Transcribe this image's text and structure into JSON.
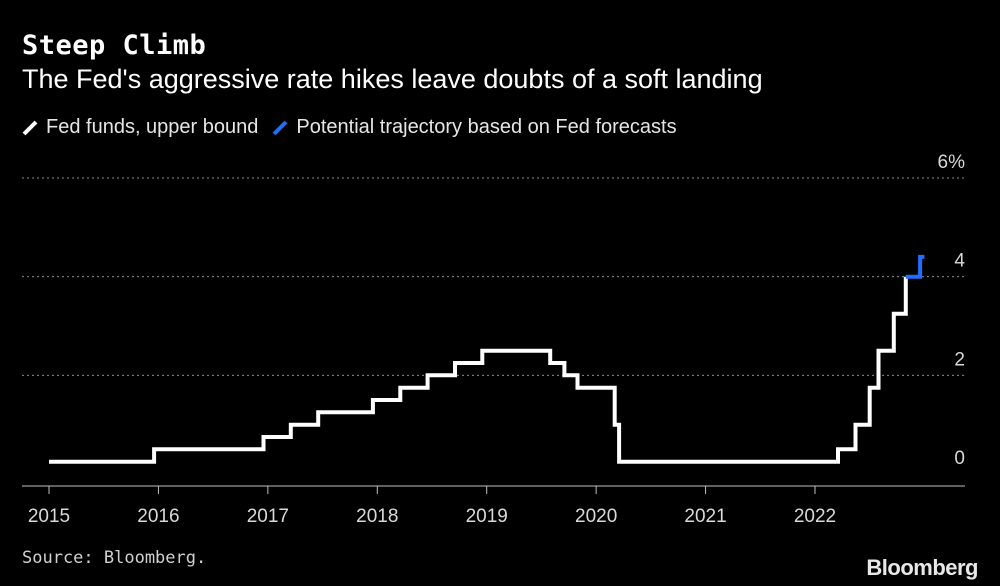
{
  "header": {
    "title": "Steep Climb",
    "subtitle": "The Fed's aggressive rate hikes leave doubts of a soft landing"
  },
  "footer": {
    "source": "Source: Bloomberg.",
    "brand": "Bloomberg"
  },
  "colors": {
    "series_main": "#ffffff",
    "series_forecast": "#1f6fff",
    "gridline": "#8a8a8a",
    "background": "#000000"
  },
  "chart_data": {
    "type": "line",
    "step": true,
    "title": "Steep Climb",
    "subtitle": "The Fed's aggressive rate hikes leave doubts of a soft landing",
    "xlabel": "",
    "ylabel": "",
    "xlim": [
      2014.8,
      2023.4
    ],
    "ylim": [
      0,
      6
    ],
    "y_ticks": [
      0,
      2,
      4,
      6
    ],
    "y_tick_labels": [
      "0",
      "2",
      "4",
      "6%"
    ],
    "x_ticks": [
      2015,
      2016,
      2017,
      2018,
      2019,
      2020,
      2021,
      2022
    ],
    "x_tick_labels": [
      "2015",
      "2016",
      "2017",
      "2018",
      "2019",
      "2020",
      "2021",
      "2022"
    ],
    "grid": true,
    "legend_position": "top-left",
    "series": [
      {
        "name": "Fed funds, upper bound",
        "color": "#ffffff",
        "points": [
          [
            2015.0,
            0.25
          ],
          [
            2015.96,
            0.25
          ],
          [
            2015.96,
            0.5
          ],
          [
            2016.96,
            0.5
          ],
          [
            2016.96,
            0.75
          ],
          [
            2017.21,
            0.75
          ],
          [
            2017.21,
            1.0
          ],
          [
            2017.46,
            1.0
          ],
          [
            2017.46,
            1.25
          ],
          [
            2017.96,
            1.25
          ],
          [
            2017.96,
            1.5
          ],
          [
            2018.21,
            1.5
          ],
          [
            2018.21,
            1.75
          ],
          [
            2018.46,
            1.75
          ],
          [
            2018.46,
            2.0
          ],
          [
            2018.71,
            2.0
          ],
          [
            2018.71,
            2.25
          ],
          [
            2018.96,
            2.25
          ],
          [
            2018.96,
            2.5
          ],
          [
            2019.58,
            2.5
          ],
          [
            2019.58,
            2.25
          ],
          [
            2019.71,
            2.25
          ],
          [
            2019.71,
            2.0
          ],
          [
            2019.83,
            2.0
          ],
          [
            2019.83,
            1.75
          ],
          [
            2020.17,
            1.75
          ],
          [
            2020.17,
            1.0
          ],
          [
            2020.21,
            1.0
          ],
          [
            2020.21,
            0.25
          ],
          [
            2022.21,
            0.25
          ],
          [
            2022.21,
            0.5
          ],
          [
            2022.37,
            0.5
          ],
          [
            2022.37,
            1.0
          ],
          [
            2022.5,
            1.0
          ],
          [
            2022.5,
            1.75
          ],
          [
            2022.58,
            1.75
          ],
          [
            2022.58,
            2.5
          ],
          [
            2022.72,
            2.5
          ],
          [
            2022.72,
            3.25
          ],
          [
            2022.83,
            3.25
          ],
          [
            2022.83,
            4.0
          ]
        ]
      },
      {
        "name": "Potential trajectory based on Fed forecasts",
        "color": "#1f6fff",
        "points": [
          [
            2022.83,
            4.0
          ],
          [
            2022.96,
            4.0
          ],
          [
            2022.96,
            4.4
          ],
          [
            2023.0,
            4.4
          ]
        ]
      }
    ]
  }
}
